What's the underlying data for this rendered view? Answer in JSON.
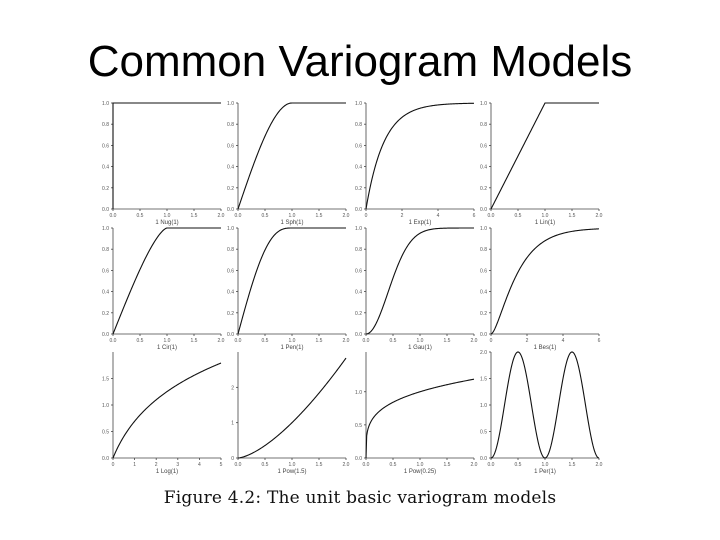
{
  "slide": {
    "title": "Common Variogram Models"
  },
  "figure": {
    "caption": "Figure 4.2: The unit basic variogram models"
  },
  "chart_data": [
    {
      "type": "line",
      "model": "Nug",
      "xlabel": "1 Nug(1)",
      "xlim": [
        0,
        2
      ],
      "ylim": [
        0,
        1.0
      ],
      "xticks": [
        "0.0",
        "0.5",
        "1.0",
        "1.5",
        "2.0"
      ],
      "yticks": [
        "0.0",
        "0.2",
        "0.4",
        "0.6",
        "0.8",
        "1.0"
      ]
    },
    {
      "type": "line",
      "model": "Sph",
      "xlabel": "1 Sph(1)",
      "xlim": [
        0,
        2
      ],
      "ylim": [
        0,
        1.0
      ],
      "xticks": [
        "0.0",
        "0.5",
        "1.0",
        "1.5",
        "2.0"
      ],
      "yticks": [
        "0.0",
        "0.2",
        "0.4",
        "0.6",
        "0.8",
        "1.0"
      ]
    },
    {
      "type": "line",
      "model": "Exp",
      "xlabel": "1 Exp(1)",
      "xlim": [
        0,
        6
      ],
      "ylim": [
        0,
        1.0
      ],
      "xticks": [
        "0",
        "2",
        "4",
        "6"
      ],
      "yticks": [
        "0.0",
        "0.2",
        "0.4",
        "0.6",
        "0.8",
        "1.0"
      ]
    },
    {
      "type": "line",
      "model": "Lin",
      "xlabel": "1 Lin(1)",
      "xlim": [
        0,
        2
      ],
      "ylim": [
        0,
        1.0
      ],
      "xticks": [
        "0.0",
        "0.5",
        "1.0",
        "1.5",
        "2.0"
      ],
      "yticks": [
        "0.0",
        "0.2",
        "0.4",
        "0.6",
        "0.8",
        "1.0"
      ]
    },
    {
      "type": "line",
      "model": "Cir",
      "xlabel": "1 Cir(1)",
      "xlim": [
        0,
        2
      ],
      "ylim": [
        0,
        1.0
      ],
      "xticks": [
        "0.0",
        "0.5",
        "1.0",
        "1.5",
        "2.0"
      ],
      "yticks": [
        "0.0",
        "0.2",
        "0.4",
        "0.6",
        "0.8",
        "1.0"
      ]
    },
    {
      "type": "line",
      "model": "Pen",
      "xlabel": "1 Pen(1)",
      "xlim": [
        0,
        2
      ],
      "ylim": [
        0,
        1.0
      ],
      "xticks": [
        "0.0",
        "0.5",
        "1.0",
        "1.5",
        "2.0"
      ],
      "yticks": [
        "0.0",
        "0.2",
        "0.4",
        "0.6",
        "0.8",
        "1.0"
      ]
    },
    {
      "type": "line",
      "model": "Gau",
      "xlabel": "1 Gau(1)",
      "xlim": [
        0,
        2
      ],
      "ylim": [
        0,
        1.0
      ],
      "xticks": [
        "0.0",
        "0.5",
        "1.0",
        "1.5",
        "2.0"
      ],
      "yticks": [
        "0.0",
        "0.2",
        "0.4",
        "0.6",
        "0.8",
        "1.0"
      ]
    },
    {
      "type": "line",
      "model": "Bes",
      "xlabel": "1 Bes(1)",
      "xlim": [
        0,
        6
      ],
      "ylim": [
        0,
        1.0
      ],
      "xticks": [
        "0",
        "2",
        "4",
        "6"
      ],
      "yticks": [
        "0.0",
        "0.2",
        "0.4",
        "0.6",
        "0.8",
        "1.0"
      ]
    },
    {
      "type": "line",
      "model": "Log",
      "xlabel": "1 Log(1)",
      "xlim": [
        0,
        5
      ],
      "ylim": [
        0,
        2.0
      ],
      "xticks": [
        "0",
        "1",
        "2",
        "3",
        "4",
        "5"
      ],
      "yticks": [
        "0.0",
        "0.5",
        "1.0",
        "1.5"
      ]
    },
    {
      "type": "line",
      "model": "Pow",
      "param": 1.5,
      "xlabel": "1 Pow(1.5)",
      "xlim": [
        0,
        2
      ],
      "ylim": [
        0,
        3.0
      ],
      "xticks": [
        "0.0",
        "0.5",
        "1.0",
        "1.5",
        "2.0"
      ],
      "yticks": [
        "0",
        "1",
        "2"
      ]
    },
    {
      "type": "line",
      "model": "Pow",
      "param": 0.25,
      "xlabel": "1 Pow(0.25)",
      "xlim": [
        0,
        2
      ],
      "ylim": [
        0,
        1.6
      ],
      "xticks": [
        "0.0",
        "0.5",
        "1.0",
        "1.5",
        "2.0"
      ],
      "yticks": [
        "0.0",
        "0.5",
        "1.0"
      ]
    },
    {
      "type": "line",
      "model": "Per",
      "xlabel": "1 Per(1)",
      "xlim": [
        0,
        2
      ],
      "ylim": [
        0,
        2.0
      ],
      "xticks": [
        "0.0",
        "0.5",
        "1.0",
        "1.5",
        "2.0"
      ],
      "yticks": [
        "0.0",
        "0.5",
        "1.0",
        "1.5",
        "2.0"
      ]
    }
  ]
}
